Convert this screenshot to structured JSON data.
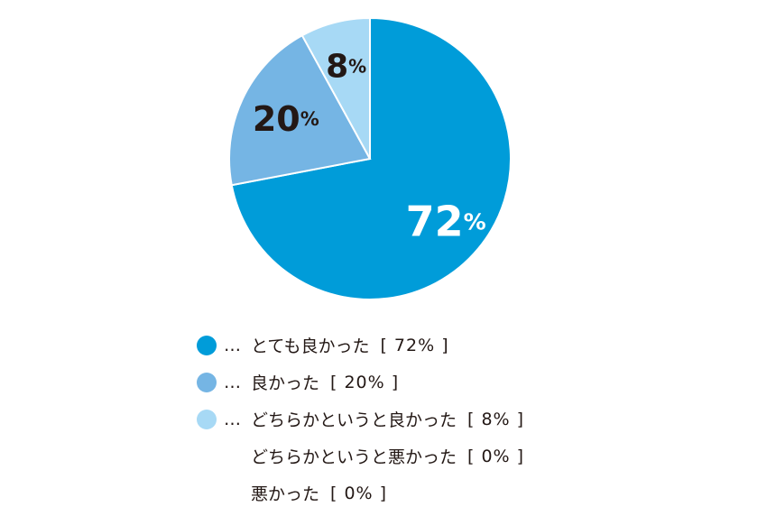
{
  "chart_data": {
    "type": "pie",
    "slices": [
      {
        "label": "とても良かった",
        "value": 72,
        "display": "72%",
        "color": "#009cd9",
        "label_color": "#ffffff"
      },
      {
        "label": "良かった",
        "value": 20,
        "display": "20%",
        "color": "#75b5e4",
        "label_color": "#231815"
      },
      {
        "label": "どちらかというと良かった",
        "value": 8,
        "display": "8%",
        "color": "#a7d9f5",
        "label_color": "#231815"
      },
      {
        "label": "どちらかというと悪かった",
        "value": 0,
        "display": "0%",
        "color": null
      },
      {
        "label": "悪かった",
        "value": 0,
        "display": "0%",
        "color": null
      }
    ]
  },
  "legend": {
    "rows": [
      {
        "marker": "…",
        "label": "とても良かった",
        "value_text": "[ 72% ]",
        "color": "#009cd9"
      },
      {
        "marker": "…",
        "label": "良かった",
        "value_text": "[ 20% ]",
        "color": "#75b5e4"
      },
      {
        "marker": "…",
        "label": "どちらかというと良かった",
        "value_text": "[ 8% ]",
        "color": "#a7d9f5"
      },
      {
        "marker": "",
        "label": "どちらかというと悪かった",
        "value_text": "[ 0% ]",
        "color": null
      },
      {
        "marker": "",
        "label": "悪かった",
        "value_text": "[ 0% ]",
        "color": null
      }
    ]
  }
}
